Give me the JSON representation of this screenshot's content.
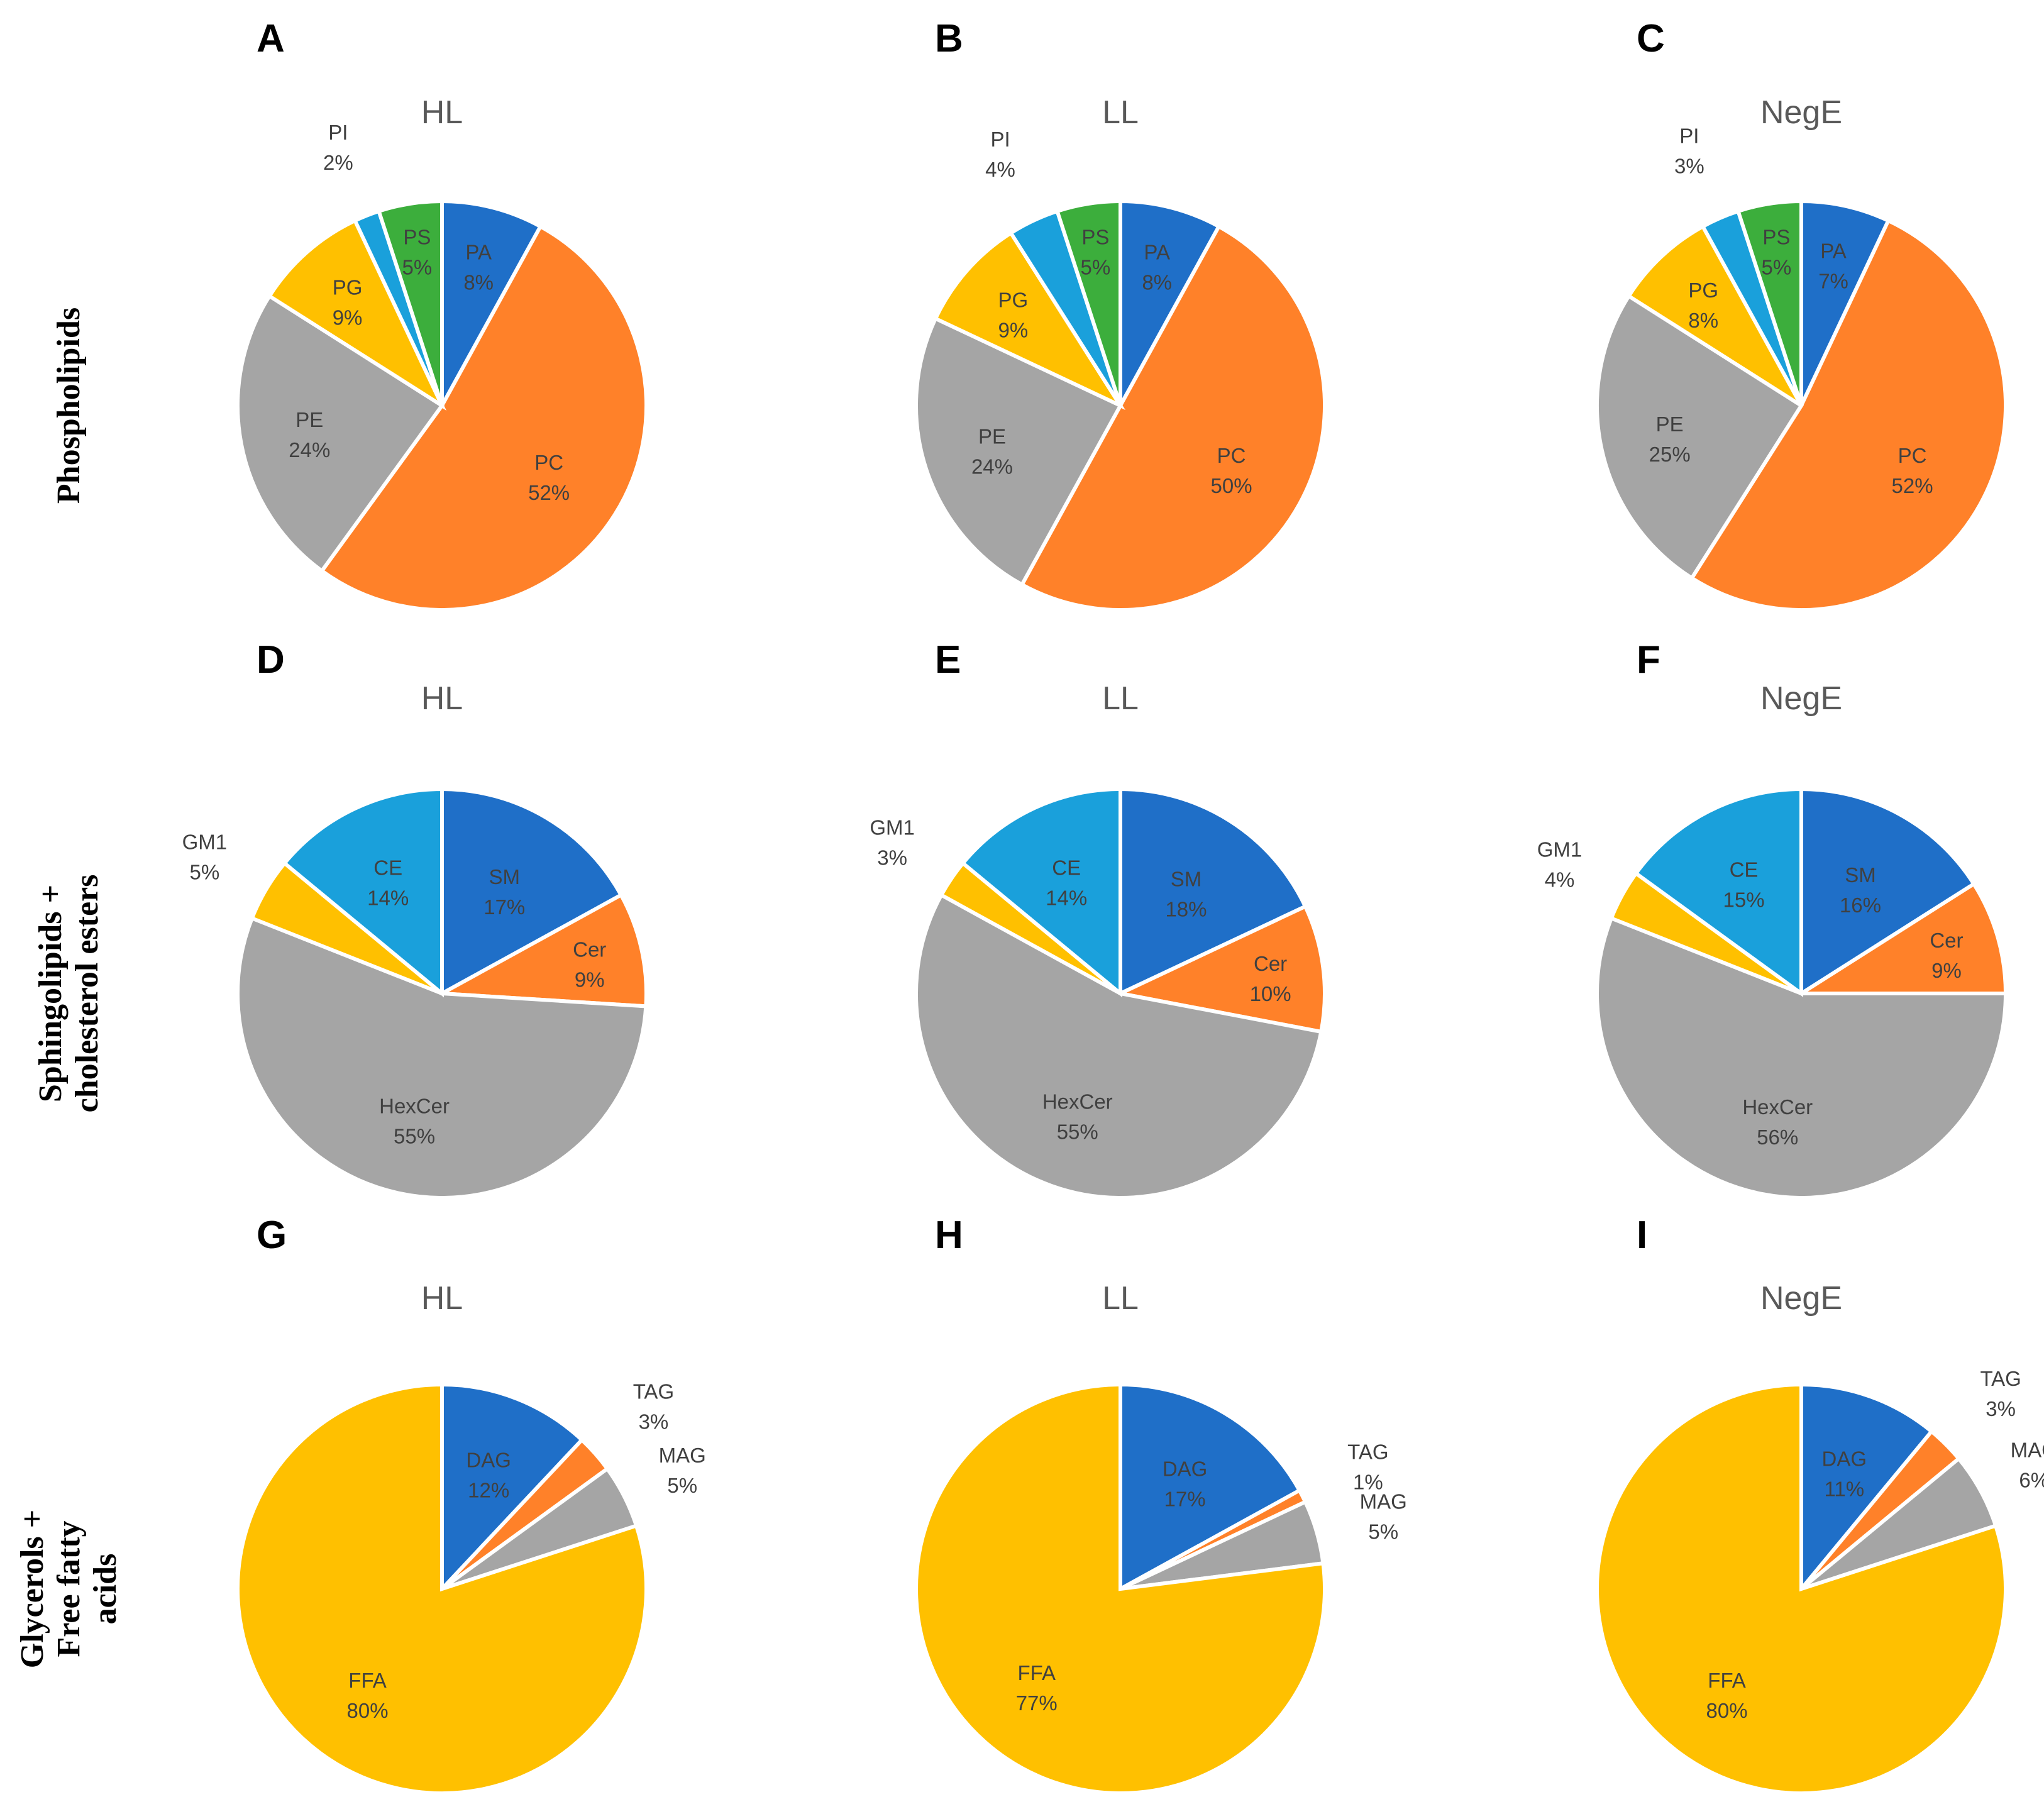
{
  "row_labels": [
    [
      "Phospholipids"
    ],
    [
      "Sphingolipids +",
      "cholesterol esters"
    ],
    [
      "Glycerols +",
      "Free fatty",
      "acids"
    ]
  ],
  "colors": {
    "blue": "#1F6FC8",
    "orange": "#FF8129",
    "gray": "#A5A5A5",
    "yellow": "#FFC000",
    "lightblue": "#1AA0DB",
    "green": "#3CAE3C"
  },
  "chart_data": [
    {
      "panel": "A",
      "type": "pie",
      "title": "HL",
      "slices": [
        {
          "label": "PA",
          "value": 8,
          "color": "#1F6FC8"
        },
        {
          "label": "PC",
          "value": 52,
          "color": "#FF8129"
        },
        {
          "label": "PE",
          "value": 24,
          "color": "#A5A5A5"
        },
        {
          "label": "PG",
          "value": 9,
          "color": "#FFC000"
        },
        {
          "label": "PI",
          "value": 2,
          "color": "#1AA0DB"
        },
        {
          "label": "PS",
          "value": 5,
          "color": "#3CAE3C"
        }
      ]
    },
    {
      "panel": "B",
      "type": "pie",
      "title": "LL",
      "slices": [
        {
          "label": "PA",
          "value": 8,
          "color": "#1F6FC8"
        },
        {
          "label": "PC",
          "value": 50,
          "color": "#FF8129"
        },
        {
          "label": "PE",
          "value": 24,
          "color": "#A5A5A5"
        },
        {
          "label": "PG",
          "value": 9,
          "color": "#FFC000"
        },
        {
          "label": "PI",
          "value": 4,
          "color": "#1AA0DB"
        },
        {
          "label": "PS",
          "value": 5,
          "color": "#3CAE3C"
        }
      ]
    },
    {
      "panel": "C",
      "type": "pie",
      "title": "NegE",
      "slices": [
        {
          "label": "PA",
          "value": 7,
          "color": "#1F6FC8"
        },
        {
          "label": "PC",
          "value": 52,
          "color": "#FF8129"
        },
        {
          "label": "PE",
          "value": 25,
          "color": "#A5A5A5"
        },
        {
          "label": "PG",
          "value": 8,
          "color": "#FFC000"
        },
        {
          "label": "PI",
          "value": 3,
          "color": "#1AA0DB"
        },
        {
          "label": "PS",
          "value": 5,
          "color": "#3CAE3C"
        }
      ]
    },
    {
      "panel": "D",
      "type": "pie",
      "title": "HL",
      "slices": [
        {
          "label": "SM",
          "value": 17,
          "color": "#1F6FC8"
        },
        {
          "label": "Cer",
          "value": 9,
          "color": "#FF8129"
        },
        {
          "label": "HexCer",
          "value": 55,
          "color": "#A5A5A5"
        },
        {
          "label": "GM1",
          "value": 5,
          "color": "#FFC000"
        },
        {
          "label": "CE",
          "value": 14,
          "color": "#1AA0DB"
        }
      ]
    },
    {
      "panel": "E",
      "type": "pie",
      "title": "LL",
      "slices": [
        {
          "label": "SM",
          "value": 18,
          "color": "#1F6FC8"
        },
        {
          "label": "Cer",
          "value": 10,
          "color": "#FF8129"
        },
        {
          "label": "HexCer",
          "value": 55,
          "color": "#A5A5A5"
        },
        {
          "label": "GM1",
          "value": 3,
          "color": "#FFC000"
        },
        {
          "label": "CE",
          "value": 14,
          "color": "#1AA0DB"
        }
      ]
    },
    {
      "panel": "F",
      "type": "pie",
      "title": "NegE",
      "slices": [
        {
          "label": "SM",
          "value": 16,
          "color": "#1F6FC8"
        },
        {
          "label": "Cer",
          "value": 9,
          "color": "#FF8129"
        },
        {
          "label": "HexCer",
          "value": 56,
          "color": "#A5A5A5"
        },
        {
          "label": "GM1",
          "value": 4,
          "color": "#FFC000"
        },
        {
          "label": "CE",
          "value": 15,
          "color": "#1AA0DB"
        }
      ]
    },
    {
      "panel": "G",
      "type": "pie",
      "title": "HL",
      "slices": [
        {
          "label": "DAG",
          "value": 12,
          "color": "#1F6FC8"
        },
        {
          "label": "TAG",
          "value": 3,
          "color": "#FF8129"
        },
        {
          "label": "MAG",
          "value": 5,
          "color": "#A5A5A5"
        },
        {
          "label": "FFA",
          "value": 80,
          "color": "#FFC000"
        }
      ]
    },
    {
      "panel": "H",
      "type": "pie",
      "title": "LL",
      "slices": [
        {
          "label": "DAG",
          "value": 17,
          "color": "#1F6FC8"
        },
        {
          "label": "TAG",
          "value": 1,
          "color": "#FF8129"
        },
        {
          "label": "MAG",
          "value": 5,
          "color": "#A5A5A5"
        },
        {
          "label": "FFA",
          "value": 77,
          "color": "#FFC000"
        }
      ]
    },
    {
      "panel": "I",
      "type": "pie",
      "title": "NegE",
      "slices": [
        {
          "label": "DAG",
          "value": 11,
          "color": "#1F6FC8"
        },
        {
          "label": "TAG",
          "value": 3,
          "color": "#FF8129"
        },
        {
          "label": "MAG",
          "value": 6,
          "color": "#A5A5A5"
        },
        {
          "label": "FFA",
          "value": 80,
          "color": "#FFC000"
        }
      ]
    }
  ]
}
